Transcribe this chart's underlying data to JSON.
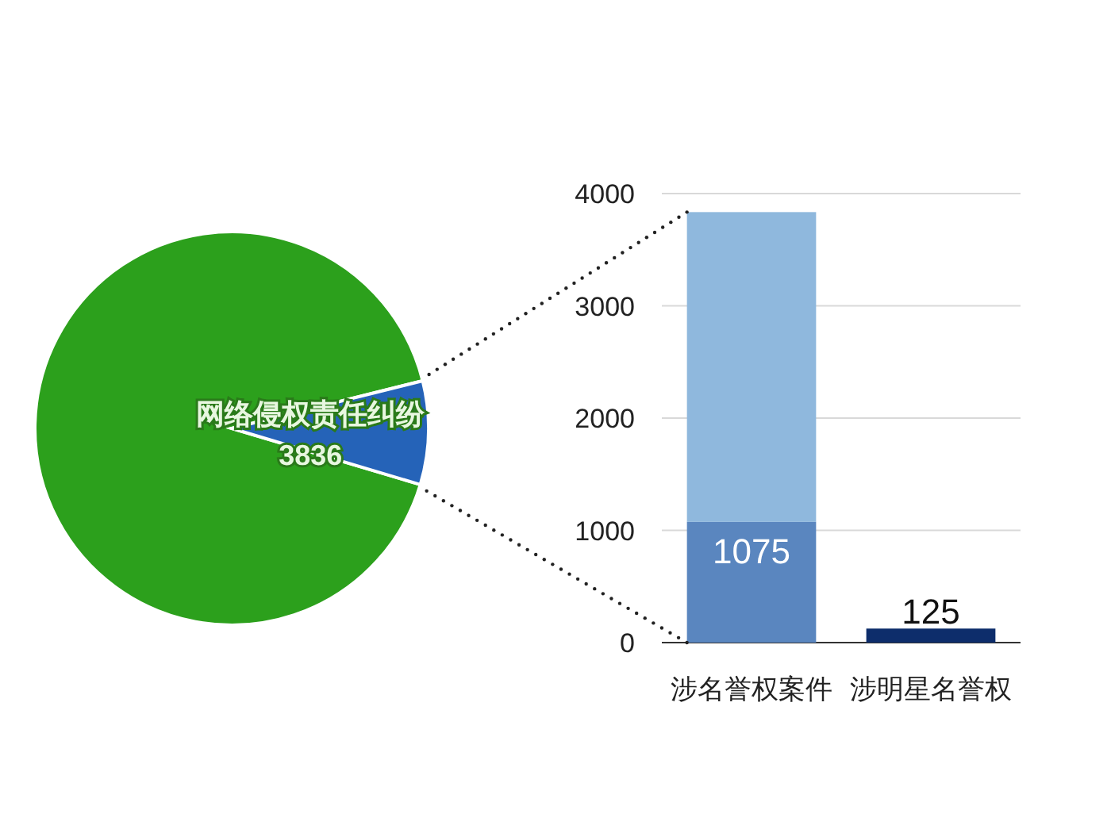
{
  "chart_data": [
    {
      "type": "pie",
      "categories": [
        null,
        "网络侵权责任纠纷"
      ],
      "values": [
        91.5,
        8.5
      ],
      "colors": [
        "#2ca01c",
        "#2563b8"
      ],
      "annotations": [
        "3836"
      ]
    },
    {
      "type": "bar",
      "categories": [
        "涉名誉权案件",
        "涉明星名誉权"
      ],
      "stacked": true,
      "ylim": [
        0,
        4000
      ],
      "yticks": [
        0,
        1000,
        2000,
        3000,
        4000
      ],
      "grid": "y",
      "series": [
        {
          "colors": [
            "#5a86bf",
            "#0d2d6b"
          ],
          "values": [
            1075,
            125
          ],
          "value_labels": [
            "1075",
            "125"
          ]
        },
        {
          "color": "#8fb8dd",
          "values": [
            2760,
            null
          ]
        }
      ]
    }
  ]
}
